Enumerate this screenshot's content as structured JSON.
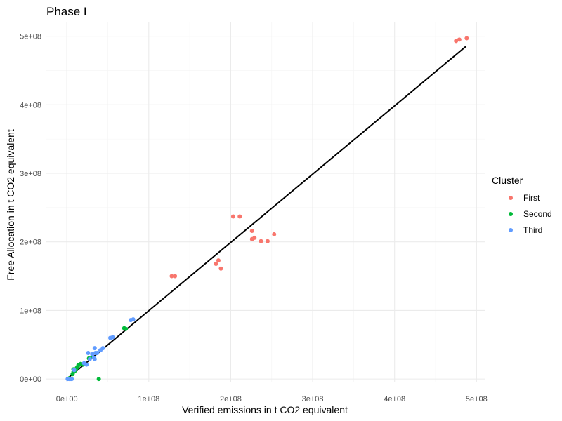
{
  "chart_data": {
    "type": "scatter",
    "title": "Phase I",
    "xlabel": "Verified emissions in  t CO2 equivalent",
    "ylabel": "Free Allocation in t CO2 equivalent",
    "xlim": [
      -25000000,
      510000000
    ],
    "ylim": [
      -5000000,
      520000000
    ],
    "x_ticks": [
      0,
      100000000,
      200000000,
      300000000,
      400000000,
      500000000
    ],
    "x_tick_labels": [
      "0e+00",
      "1e+08",
      "2e+08",
      "3e+08",
      "4e+08",
      "5e+08"
    ],
    "y_ticks": [
      0,
      100000000,
      200000000,
      300000000,
      400000000,
      500000000
    ],
    "y_tick_labels": [
      "0e+00",
      "1e+08",
      "2e+08",
      "3e+08",
      "4e+08",
      "5e+08"
    ],
    "grid": true,
    "legend": {
      "title": "Cluster",
      "position": "right"
    },
    "series": [
      {
        "name": "First",
        "color": "#F8766D",
        "points": [
          [
            475000000,
            493000000
          ],
          [
            479000000,
            495000000
          ],
          [
            488000000,
            497000000
          ],
          [
            203000000,
            237000000
          ],
          [
            211000000,
            237000000
          ],
          [
            226000000,
            216000000
          ],
          [
            226000000,
            204000000
          ],
          [
            229000000,
            206000000
          ],
          [
            237000000,
            201000000
          ],
          [
            245000000,
            201000000
          ],
          [
            253000000,
            211000000
          ],
          [
            182000000,
            168000000
          ],
          [
            185000000,
            173000000
          ],
          [
            188000000,
            161000000
          ],
          [
            128000000,
            150000000
          ],
          [
            132000000,
            150000000
          ]
        ]
      },
      {
        "name": "Second",
        "color": "#00BA38",
        "points": [
          [
            3000000,
            1000000
          ],
          [
            7000000,
            7000000
          ],
          [
            8000000,
            10000000
          ],
          [
            8000000,
            14000000
          ],
          [
            10000000,
            12000000
          ],
          [
            12000000,
            16000000
          ],
          [
            14000000,
            20000000
          ],
          [
            17000000,
            22000000
          ],
          [
            20000000,
            21000000
          ],
          [
            27000000,
            30000000
          ],
          [
            31000000,
            32000000
          ],
          [
            39000000,
            0
          ],
          [
            70000000,
            74000000
          ],
          [
            72000000,
            73000000
          ]
        ]
      },
      {
        "name": "Third",
        "color": "#619CFF",
        "points": [
          [
            1000000,
            0
          ],
          [
            3000000,
            0
          ],
          [
            5000000,
            0
          ],
          [
            6000000,
            0
          ],
          [
            9000000,
            13000000
          ],
          [
            21000000,
            23000000
          ],
          [
            24000000,
            21000000
          ],
          [
            26000000,
            38000000
          ],
          [
            28000000,
            29000000
          ],
          [
            31000000,
            36000000
          ],
          [
            33000000,
            31000000
          ],
          [
            34000000,
            29000000
          ],
          [
            35000000,
            38000000
          ],
          [
            34000000,
            45000000
          ],
          [
            37000000,
            38000000
          ],
          [
            41000000,
            42000000
          ],
          [
            44000000,
            45000000
          ],
          [
            53000000,
            60000000
          ],
          [
            56000000,
            61000000
          ],
          [
            78000000,
            86000000
          ],
          [
            81000000,
            87000000
          ]
        ]
      }
    ],
    "line": {
      "type": "fit",
      "color": "#000000",
      "x": [
        0,
        487000000
      ],
      "y": [
        0,
        485000000
      ]
    }
  }
}
